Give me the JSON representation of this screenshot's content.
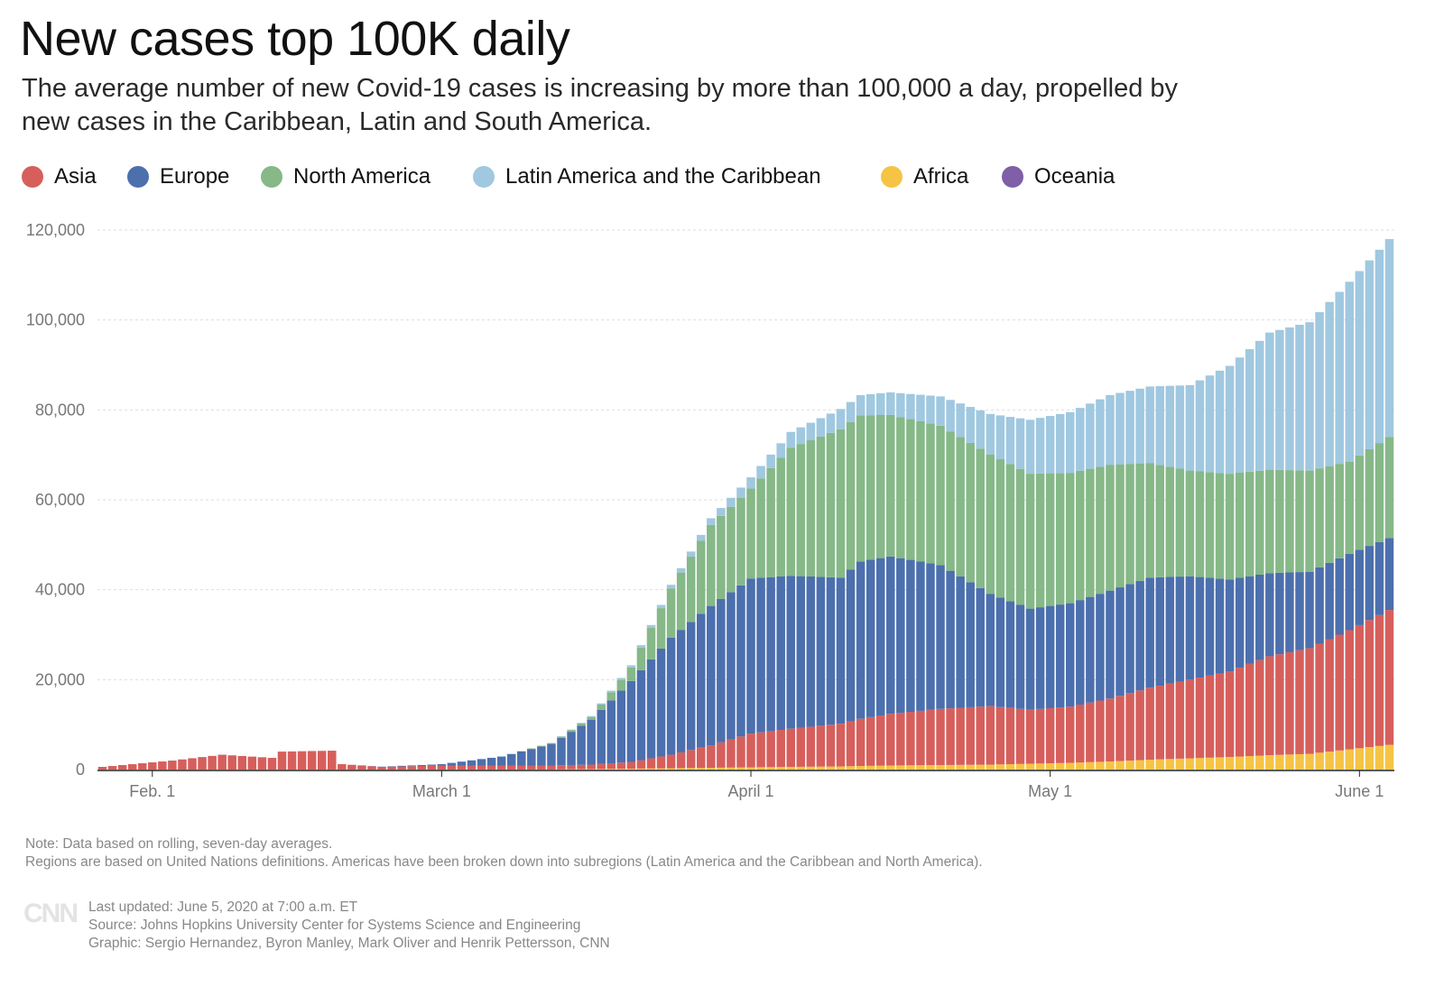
{
  "header": {
    "title": "New cases top 100K daily",
    "subtitle": "The average number of new Covid-19 cases is increasing by more than 100,000 a day, propelled by new cases in the Caribbean, Latin and South America."
  },
  "legend": [
    {
      "name": "Asia",
      "color": "#d65f5c"
    },
    {
      "name": "Europe",
      "color": "#4c6fae"
    },
    {
      "name": "North America",
      "color": "#86b888"
    },
    {
      "name": "Latin America and the Caribbean",
      "color": "#a0c8e0"
    },
    {
      "name": "Africa",
      "color": "#f5c445"
    },
    {
      "name": "Oceania",
      "color": "#7e5fa8"
    }
  ],
  "footer": {
    "note_line1": "Note: Data based on rolling, seven-day averages.",
    "note_line2": "Regions are based on United Nations definitions. Americas have been broken down into subregions (Latin America and the Caribbean and North America).",
    "logo": "CNN",
    "last_updated": "Last updated: June 5, 2020 at 7:00 a.m. ET",
    "source": "Source: Johns Hopkins University Center for Systems Science and Engineering",
    "graphic": "Graphic: Sergio Hernandez, Byron Manley, Mark Oliver and Henrik Pettersson, CNN"
  },
  "chart_data": {
    "type": "bar",
    "stacked": true,
    "grid": true,
    "legend_position": "top",
    "ylim": [
      0,
      120000
    ],
    "y_ticks": [
      0,
      20000,
      40000,
      60000,
      80000,
      100000,
      120000
    ],
    "y_tick_labels": [
      "0",
      "20,000",
      "40,000",
      "60,000",
      "80,000",
      "100,000",
      "120,000"
    ],
    "x_range": [
      "2020-01-27",
      "2020-06-04"
    ],
    "x_ticks": [
      {
        "date": "2020-02-01",
        "label": "Feb. 1"
      },
      {
        "date": "2020-03-01",
        "label": "March 1"
      },
      {
        "date": "2020-04-01",
        "label": "April 1"
      },
      {
        "date": "2020-05-01",
        "label": "May 1"
      },
      {
        "date": "2020-06-01",
        "label": "June 1"
      }
    ],
    "series_order": [
      "Africa",
      "Asia",
      "Europe",
      "North America",
      "Latin America and the Caribbean",
      "Oceania"
    ],
    "keyframes": {
      "2020-01-27": {
        "Asia": 600
      },
      "2020-02-03": {
        "Asia": 2000
      },
      "2020-02-08": {
        "Asia": 3300
      },
      "2020-02-13": {
        "Asia": 2600
      },
      "2020-02-14": {
        "Asia": 4000
      },
      "2020-02-19": {
        "Asia": 4200
      },
      "2020-02-20": {
        "Asia": 1200
      },
      "2020-02-24": {
        "Asia": 600,
        "Europe": 50
      },
      "2020-03-01": {
        "Asia": 900,
        "Europe": 300
      },
      "2020-03-07": {
        "Asia": 900,
        "Europe": 2000
      },
      "2020-03-12": {
        "Asia": 900,
        "Europe": 4800,
        "North America": 200
      },
      "2020-03-16": {
        "Africa": 100,
        "Asia": 1000,
        "Europe": 10000,
        "North America": 600,
        "Latin America and the Caribbean": 200
      },
      "2020-03-20": {
        "Africa": 200,
        "Asia": 1500,
        "Europe": 18000,
        "North America": 3000,
        "Latin America and the Caribbean": 500
      },
      "2020-03-24": {
        "Africa": 300,
        "Asia": 3000,
        "Europe": 26000,
        "North America": 11000,
        "Latin America and the Caribbean": 800
      },
      "2020-03-28": {
        "Africa": 400,
        "Asia": 5000,
        "Europe": 31000,
        "North America": 18000,
        "Latin America and the Caribbean": 1500
      },
      "2020-04-01": {
        "Africa": 500,
        "Asia": 7500,
        "Europe": 34500,
        "North America": 20000,
        "Latin America and the Caribbean": 2500
      },
      "2020-04-05": {
        "Africa": 600,
        "Asia": 8500,
        "Europe": 34000,
        "North America": 28500,
        "Latin America and the Caribbean": 3500
      },
      "2020-04-10": {
        "Africa": 700,
        "Asia": 9500,
        "Europe": 32500,
        "North America": 33000,
        "Latin America and the Caribbean": 4500
      },
      "2020-04-12": {
        "Africa": 800,
        "Asia": 10500,
        "Europe": 35000,
        "North America": 32500,
        "Latin America and the Caribbean": 4500
      },
      "2020-04-15": {
        "Africa": 900,
        "Asia": 11500,
        "Europe": 35000,
        "North America": 31500,
        "Latin America and the Caribbean": 5000
      },
      "2020-04-20": {
        "Africa": 1000,
        "Asia": 12500,
        "Europe": 32000,
        "North America": 31000,
        "Latin America and the Caribbean": 6500
      },
      "2020-04-25": {
        "Africa": 1100,
        "Asia": 13000,
        "Europe": 25000,
        "North America": 31000,
        "Latin America and the Caribbean": 9000
      },
      "2020-04-29": {
        "Africa": 1300,
        "Asia": 12000,
        "Europe": 22500,
        "North America": 30000,
        "Latin America and the Caribbean": 12000
      },
      "2020-05-03": {
        "Africa": 1500,
        "Asia": 12500,
        "Europe": 23000,
        "North America": 29000,
        "Latin America and the Caribbean": 13500
      },
      "2020-05-07": {
        "Africa": 1800,
        "Asia": 14000,
        "Europe": 24000,
        "North America": 28000,
        "Latin America and the Caribbean": 15500
      },
      "2020-05-11": {
        "Africa": 2200,
        "Asia": 16000,
        "Europe": 24500,
        "North America": 25500,
        "Latin America and the Caribbean": 17000
      },
      "2020-05-15": {
        "Africa": 2500,
        "Asia": 17500,
        "Europe": 23000,
        "North America": 23500,
        "Latin America and the Caribbean": 19000
      },
      "2020-05-19": {
        "Africa": 2800,
        "Asia": 19000,
        "Europe": 20500,
        "North America": 23500,
        "Latin America and the Caribbean": 24000
      },
      "2020-05-23": {
        "Africa": 3200,
        "Asia": 22000,
        "Europe": 18500,
        "North America": 23000,
        "Latin America and the Caribbean": 30500
      },
      "2020-05-27": {
        "Africa": 3500,
        "Asia": 23500,
        "Europe": 17000,
        "North America": 22500,
        "Latin America and the Caribbean": 33000
      },
      "2020-05-31": {
        "Africa": 4500,
        "Asia": 26500,
        "Europe": 17000,
        "North America": 20500,
        "Latin America and the Caribbean": 40000
      },
      "2020-06-04": {
        "Africa": 5500,
        "Asia": 30000,
        "Europe": 16000,
        "North America": 22500,
        "Latin America and the Caribbean": 44000
      }
    }
  }
}
